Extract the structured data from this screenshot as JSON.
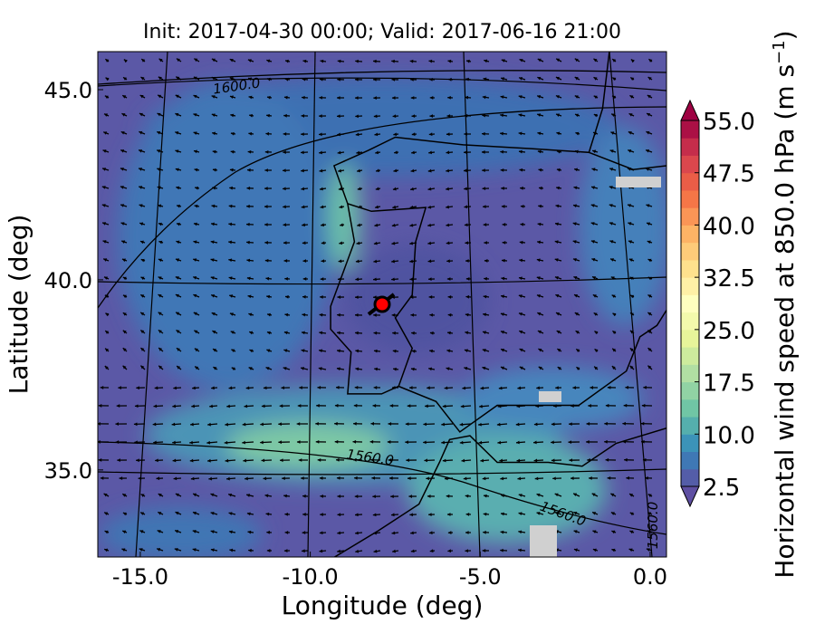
{
  "title": "Init: 2017-04-30 00:00; Valid: 2017-06-16 21:00",
  "x_axis": {
    "label": "Longitude (deg)",
    "lim": [
      -16.25,
      0.48
    ],
    "ticks": [
      {
        "value": -15,
        "label": "-15.0"
      },
      {
        "value": -10,
        "label": "-10.0"
      },
      {
        "value": -5,
        "label": "-5.0"
      },
      {
        "value": 0,
        "label": "0.0"
      }
    ]
  },
  "y_axis": {
    "label": "Latitude (deg)",
    "lim": [
      32.71,
      46.0
    ],
    "ticks": [
      {
        "value": 35,
        "label": "35.0"
      },
      {
        "value": 40,
        "label": "40.0"
      },
      {
        "value": 45,
        "label": "45.0"
      }
    ]
  },
  "colorbar": {
    "label": "Horizontal wind speed at 850.0 hPa (m s",
    "label_exponent": "−1",
    "label_close": ")",
    "lim": [
      2.5,
      55
    ],
    "ticks": [
      {
        "value": 2.5,
        "label": "2.5"
      },
      {
        "value": 10,
        "label": "10.0"
      },
      {
        "value": 17.5,
        "label": "17.5"
      },
      {
        "value": 25,
        "label": "25.0"
      },
      {
        "value": 32.5,
        "label": "32.5"
      },
      {
        "value": 40,
        "label": "40.0"
      },
      {
        "value": 47.5,
        "label": "47.5"
      },
      {
        "value": 55,
        "label": "55.0"
      }
    ]
  },
  "contour_labels": [
    "1600.0",
    "1560.0",
    "1560.0",
    "1560.0"
  ]
}
